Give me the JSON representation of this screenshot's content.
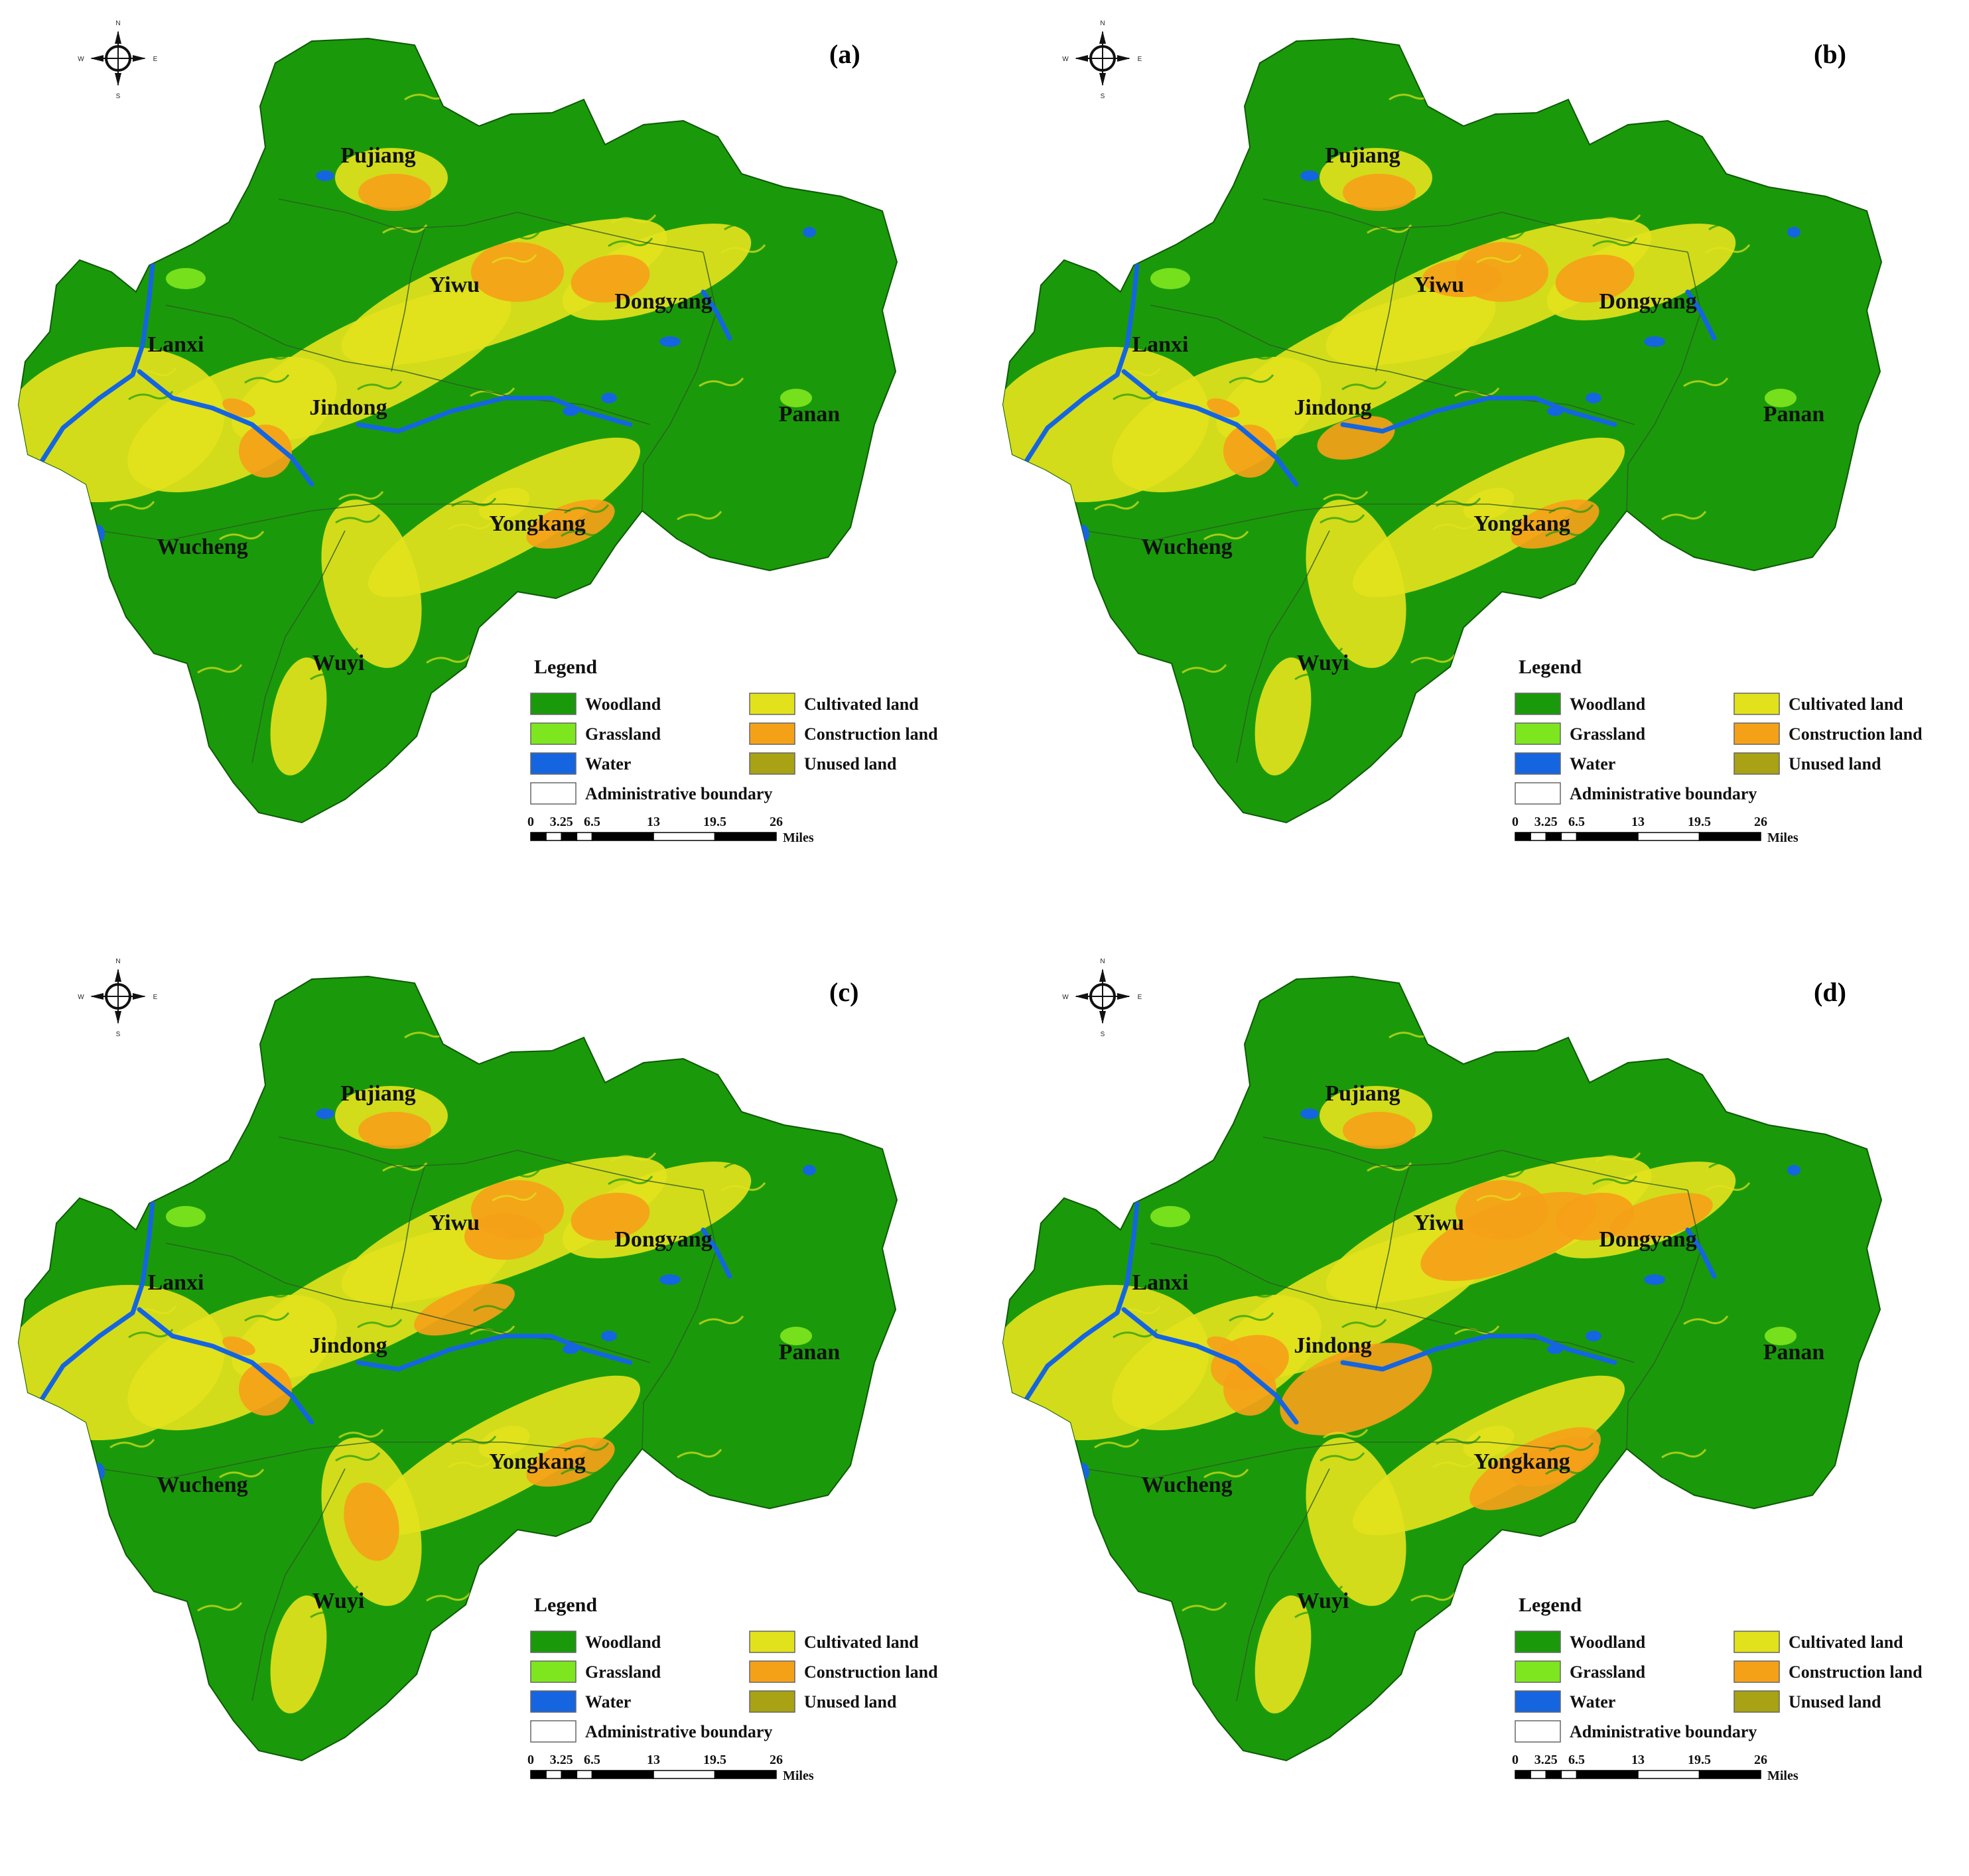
{
  "panels": [
    {
      "letter": "(a)"
    },
    {
      "letter": "(b)"
    },
    {
      "letter": "(c)"
    },
    {
      "letter": "(d)"
    }
  ],
  "places": [
    "Pujiang",
    "Yiwu",
    "Dongyang",
    "Lanxi",
    "Jindong",
    "Panan",
    "Yongkang",
    "Wucheng",
    "Wuyi"
  ],
  "compass": {
    "n": "N",
    "s": "S",
    "e": "E",
    "w": "W"
  },
  "legend": {
    "title": "Legend",
    "items": [
      {
        "label": "Woodland",
        "color": "#1a9a0a"
      },
      {
        "label": "Cultivated land",
        "color": "#e2e21c"
      },
      {
        "label": "Grassland",
        "color": "#7ee61e"
      },
      {
        "label": "Construction land",
        "color": "#f5a118"
      },
      {
        "label": "Water",
        "color": "#1565e0"
      },
      {
        "label": "Unused land",
        "color": "#a8a214"
      },
      {
        "label": "Administrative boundary",
        "color": "#ffffff"
      }
    ]
  },
  "scale": {
    "ticks": [
      "0",
      "3.25",
      "6.5",
      "13",
      "19.5",
      "26"
    ],
    "unit": "Miles"
  },
  "colors": {
    "woodland": "#1a9a0a",
    "grassland": "#7ee61e",
    "water": "#1565e0",
    "cultivated": "#e2e21c",
    "construction": "#f5a118",
    "unused": "#a8a214",
    "boundary": "#2d5a24"
  }
}
